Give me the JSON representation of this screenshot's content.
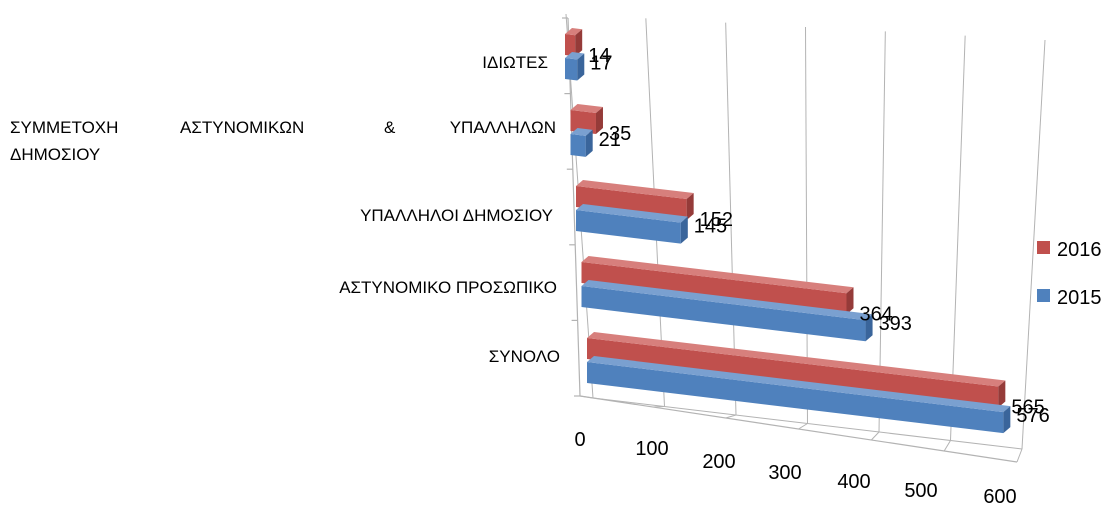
{
  "chart_data": {
    "type": "bar",
    "orientation": "horizontal",
    "style": "3d",
    "title": "",
    "xlabel": "",
    "ylabel": "",
    "categories": [
      "ΣΥΝΟΛΟ",
      "ΑΣΤΥΝΟΜΙΚΟ ΠΡΟΣΩΠΙΚΟ",
      "ΥΠΑΛΛΗΛΟΙ ΔΗΜΟΣΙΟΥ",
      "ΣΥΜΜΕΤΟΧΗ ΑΣΤΥΝΟΜΙΚΩΝ & ΥΠΑΛΛΗΛΩΝ ΔΗΜΟΣΙΟΥ",
      "ΙΔΙΩΤΕΣ"
    ],
    "category_display": [
      [
        "ΣΥΝΟΛΟ"
      ],
      [
        "ΑΣΤΥΝΟΜΙΚΟ ΠΡΟΣΩΠΙΚΟ"
      ],
      [
        "ΥΠΑΛΛΗΛΟΙ ΔΗΜΟΣΙΟΥ"
      ],
      [
        "ΣΥΜΜΕΤΟΧΗ",
        "ΑΣΤΥΝΟΜΙΚΩΝ",
        "&",
        "ΥΠΑΛΛΗΛΩΝ",
        "ΔΗΜΟΣΙΟΥ"
      ],
      [
        "ΙΔΙΩΤΕΣ"
      ]
    ],
    "series": [
      {
        "name": "2015",
        "color": "#4f81bd",
        "side": "#3a659b",
        "top": "#7aa0d0",
        "values": [
          576,
          393,
          145,
          21,
          17
        ]
      },
      {
        "name": "2016",
        "color": "#c0504d",
        "side": "#953b39",
        "top": "#d77f7c",
        "values": [
          565,
          364,
          152,
          35,
          14
        ]
      }
    ],
    "xlim": [
      0,
      600
    ],
    "ticks": [
      0,
      100,
      200,
      300,
      400,
      500,
      600
    ],
    "tick_labels": [
      "0",
      "100",
      "200",
      "300",
      "400",
      "500",
      "600"
    ],
    "grid": true,
    "legend": {
      "position": "right",
      "order": [
        "2016",
        "2015"
      ]
    }
  }
}
